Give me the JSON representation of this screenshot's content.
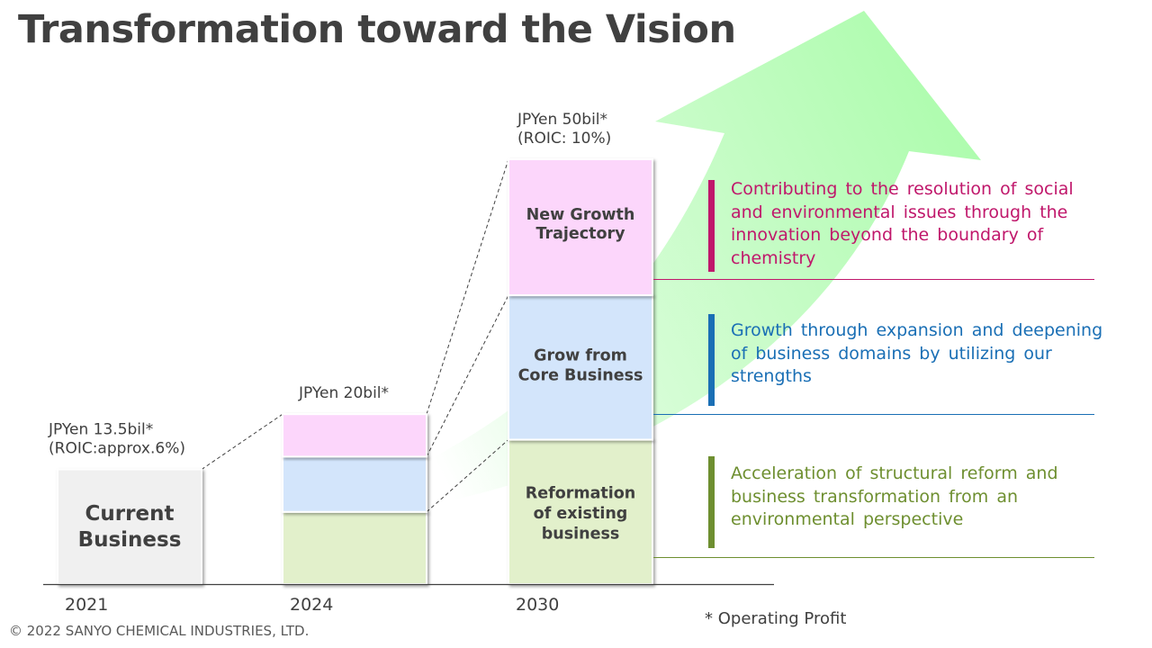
{
  "title": "Transformation toward the Vision",
  "colors": {
    "arrow": "#9ffb9f",
    "reformation": "#e2f0cb",
    "core": "#d3e5fb",
    "growth": "#fcd6fb",
    "current": "#f0f0f0",
    "magenta_text": "#c0176b",
    "blue_text": "#1a6fb5",
    "green_text": "#6e8f30"
  },
  "chart_data": {
    "type": "bar",
    "stacked": true,
    "categories": [
      "2021",
      "2024",
      "2030"
    ],
    "series": [
      {
        "name": "Current Business",
        "values": [
          13.5,
          0,
          0
        ]
      },
      {
        "name": "Reformation of existing business",
        "values": [
          0,
          8.5,
          17
        ]
      },
      {
        "name": "Grow from Core Business",
        "values": [
          0,
          6.5,
          17
        ]
      },
      {
        "name": "New Growth Trajectory",
        "values": [
          0,
          5,
          16
        ]
      }
    ],
    "annotations": [
      {
        "category": "2021",
        "lines": [
          "JPYen 13.5bil*",
          "(ROIC:approx.6%)"
        ]
      },
      {
        "category": "2024",
        "lines": [
          "JPYen 20bil*"
        ]
      },
      {
        "category": "2030",
        "lines": [
          "JPYen 50bil*",
          "(ROIC: 10%)"
        ]
      }
    ],
    "bar_labels": {
      "current": [
        "Current",
        "Business"
      ],
      "growth": [
        "New Growth",
        "Trajectory"
      ],
      "core": [
        "Grow from",
        "Core Business"
      ],
      "reformation": [
        "Reformation",
        "of existing",
        "business"
      ]
    }
  },
  "descriptions": [
    {
      "text": "Contributing to the resolution of social and environmental issues through the innovation beyond the boundary of chemistry"
    },
    {
      "text": "Growth through expansion and deepening of business domains by utilizing our strengths"
    },
    {
      "text": "Acceleration of structural reform and business transformation from an environmental perspective"
    }
  ],
  "footnote": "* Operating Profit",
  "copyright": "© 2022 SANYO CHEMICAL INDUSTRIES, LTD."
}
